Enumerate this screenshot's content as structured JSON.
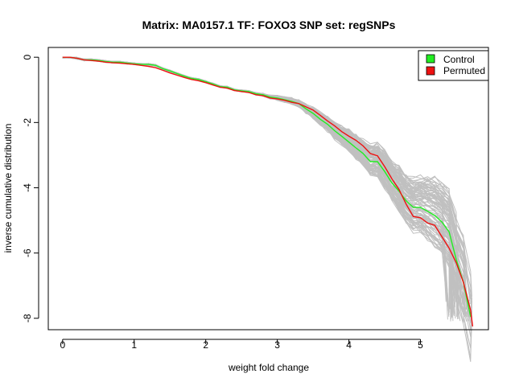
{
  "chart_data": {
    "type": "line",
    "title": "Matrix: MA0157.1 TF: FOXO3 SNP set: regSNPs",
    "xlabel": "weight fold change",
    "ylabel": "inverse cumulative distribution",
    "xlim": [
      -0.2,
      5.95
    ],
    "ylim": [
      -8.35,
      0.3
    ],
    "xticks": [
      0,
      1,
      2,
      3,
      4,
      5
    ],
    "yticks": [
      0,
      -2,
      -4,
      -6,
      -8
    ],
    "grid": false,
    "legend_position": "top-right",
    "legend": [
      {
        "label": "Control",
        "color": "#22ee22"
      },
      {
        "label": "Permuted",
        "color": "#ee1111"
      }
    ],
    "background_series_color": "#c0c0c0",
    "background_series_count": 100,
    "series": [
      {
        "name": "Control",
        "color": "#22ee22",
        "x": [
          0,
          0.1,
          0.2,
          0.3,
          0.4,
          0.5,
          0.6,
          0.7,
          0.8,
          0.9,
          1.0,
          1.1,
          1.2,
          1.3,
          1.4,
          1.5,
          1.6,
          1.7,
          1.8,
          1.9,
          2.0,
          2.1,
          2.2,
          2.3,
          2.4,
          2.5,
          2.6,
          2.7,
          2.8,
          2.9,
          3.0,
          3.1,
          3.2,
          3.3,
          3.4,
          3.5,
          3.6,
          3.7,
          3.8,
          3.9,
          4.0,
          4.1,
          4.2,
          4.3,
          4.4,
          4.5,
          4.6,
          4.7,
          4.8,
          4.9,
          5.0,
          5.1,
          5.2,
          5.3,
          5.4,
          5.5,
          5.6,
          5.7
        ],
        "y": [
          0,
          0,
          -0.03,
          -0.08,
          -0.08,
          -0.1,
          -0.13,
          -0.15,
          -0.15,
          -0.18,
          -0.2,
          -0.22,
          -0.22,
          -0.25,
          -0.35,
          -0.42,
          -0.5,
          -0.58,
          -0.65,
          -0.68,
          -0.75,
          -0.82,
          -0.9,
          -0.92,
          -1.0,
          -1.03,
          -1.05,
          -1.12,
          -1.15,
          -1.22,
          -1.25,
          -1.3,
          -1.35,
          -1.42,
          -1.58,
          -1.72,
          -1.9,
          -2.05,
          -2.25,
          -2.42,
          -2.6,
          -2.78,
          -2.95,
          -3.2,
          -3.2,
          -3.5,
          -3.85,
          -4.1,
          -4.4,
          -4.6,
          -4.6,
          -4.72,
          -4.85,
          -5.05,
          -5.35,
          -6.2,
          -6.9,
          -7.95
        ]
      },
      {
        "name": "Permuted",
        "color": "#ee1111",
        "x": [
          0,
          0.1,
          0.2,
          0.3,
          0.4,
          0.5,
          0.6,
          0.7,
          0.8,
          0.9,
          1.0,
          1.1,
          1.2,
          1.3,
          1.4,
          1.5,
          1.6,
          1.7,
          1.8,
          1.9,
          2.0,
          2.1,
          2.2,
          2.3,
          2.4,
          2.5,
          2.6,
          2.7,
          2.8,
          2.9,
          3.0,
          3.1,
          3.2,
          3.3,
          3.4,
          3.5,
          3.6,
          3.7,
          3.8,
          3.9,
          4.0,
          4.1,
          4.2,
          4.3,
          4.4,
          4.5,
          4.6,
          4.7,
          4.8,
          4.9,
          5.0,
          5.1,
          5.2,
          5.3,
          5.4,
          5.5,
          5.6,
          5.7,
          5.73
        ],
        "y": [
          0,
          0,
          -0.03,
          -0.08,
          -0.1,
          -0.12,
          -0.15,
          -0.17,
          -0.18,
          -0.2,
          -0.22,
          -0.25,
          -0.28,
          -0.32,
          -0.4,
          -0.48,
          -0.55,
          -0.62,
          -0.68,
          -0.72,
          -0.78,
          -0.85,
          -0.92,
          -0.95,
          -1.02,
          -1.05,
          -1.08,
          -1.15,
          -1.18,
          -1.25,
          -1.28,
          -1.32,
          -1.38,
          -1.42,
          -1.52,
          -1.62,
          -1.78,
          -1.95,
          -2.1,
          -2.28,
          -2.42,
          -2.55,
          -2.72,
          -2.95,
          -3.02,
          -3.35,
          -3.72,
          -4.05,
          -4.5,
          -4.88,
          -4.92,
          -5.08,
          -5.15,
          -5.5,
          -5.85,
          -6.3,
          -6.9,
          -7.75,
          -8.25
        ]
      }
    ]
  }
}
